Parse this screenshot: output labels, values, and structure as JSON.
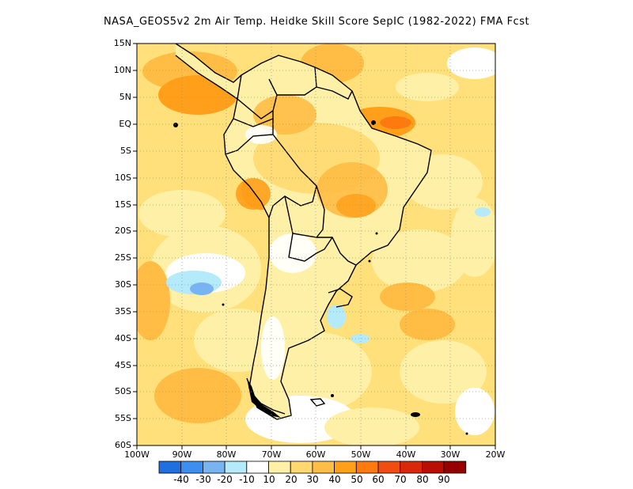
{
  "title": "NASA_GEOS5v2  2m Air Temp. Heidke Skill Score SepIC (1982-2022) FMA Fcst",
  "lat_labels": [
    "15N",
    "10N",
    "5N",
    "EQ",
    "5S",
    "10S",
    "15S",
    "20S",
    "25S",
    "30S",
    "35S",
    "40S",
    "45S",
    "50S",
    "55S",
    "60S"
  ],
  "lon_labels": [
    "100W",
    "90W",
    "80W",
    "70W",
    "60W",
    "50W",
    "40W",
    "30W",
    "20W"
  ],
  "colorbar": {
    "colors": [
      "#1f6fe0",
      "#3c8ff0",
      "#78b4f2",
      "#b4eafa",
      "#ffffff",
      "#fff0a8",
      "#ffd970",
      "#ffbd45",
      "#ff9f1a",
      "#ff7a0e",
      "#f04d10",
      "#d82a0a",
      "#b80e04",
      "#960000"
    ],
    "labels": [
      "-40",
      "-30",
      "-20",
      "-10",
      "10",
      "20",
      "30",
      "40",
      "50",
      "60",
      "70",
      "80",
      "90"
    ]
  },
  "map_style": {
    "land_color": "#fff0a8",
    "ocean_base_color": "#ffd970",
    "coast_color": "#000000",
    "grid_style": "dotted"
  }
}
